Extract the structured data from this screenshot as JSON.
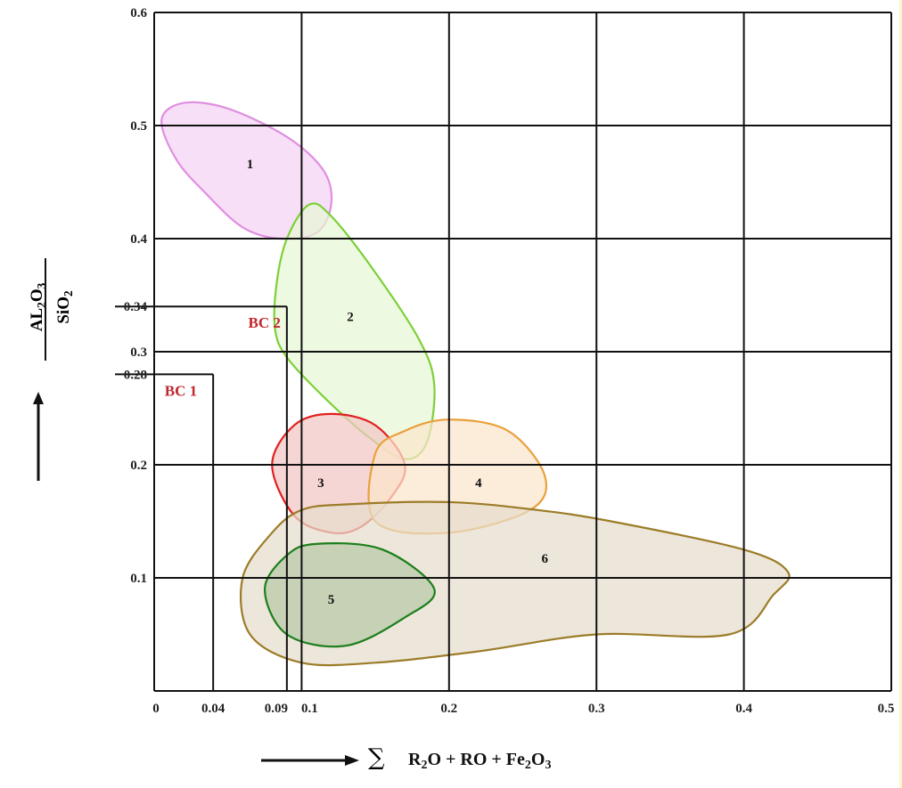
{
  "chart_data": {
    "type": "scatter",
    "title": "",
    "xlabel": "∑ R2O + RO + Fe2O3",
    "ylabel": "AL2O3 / SiO2",
    "xlim": [
      0,
      0.5
    ],
    "ylim": [
      0,
      0.6
    ],
    "grid": true,
    "x_ticks": [
      "0",
      "0.04",
      "0.09",
      "0.1",
      "0.2",
      "0.3",
      "0.4",
      "0.5"
    ],
    "x_tick_values": [
      0,
      0.04,
      0.09,
      0.1,
      0.2,
      0.3,
      0.4,
      0.5
    ],
    "y_ticks": [
      "0.1",
      "0.2",
      "0.28",
      "0.3",
      "0.34",
      "0.4",
      "0.5",
      "0.6"
    ],
    "y_tick_values": [
      0.1,
      0.2,
      0.28,
      0.3,
      0.34,
      0.4,
      0.5,
      0.6
    ],
    "grid_x": [
      0.1,
      0.2,
      0.3,
      0.4,
      0.5
    ],
    "grid_y": [
      0.1,
      0.2,
      0.3,
      0.4,
      0.5,
      0.6
    ],
    "zones": [
      {
        "label": "1",
        "stroke": "#e08ee0",
        "fill": "#f4d3f4",
        "outline": [
          [
            0.005,
            0.505
          ],
          [
            0.02,
            0.52
          ],
          [
            0.05,
            0.515
          ],
          [
            0.09,
            0.49
          ],
          [
            0.115,
            0.46
          ],
          [
            0.12,
            0.43
          ],
          [
            0.11,
            0.405
          ],
          [
            0.085,
            0.4
          ],
          [
            0.06,
            0.41
          ],
          [
            0.035,
            0.44
          ],
          [
            0.015,
            0.47
          ]
        ],
        "label_pos": [
          0.065,
          0.465
        ]
      },
      {
        "label": "2",
        "stroke": "#7cd038",
        "fill": "#e8f7d6",
        "outline": [
          [
            0.105,
            0.43
          ],
          [
            0.12,
            0.42
          ],
          [
            0.15,
            0.37
          ],
          [
            0.18,
            0.31
          ],
          [
            0.19,
            0.27
          ],
          [
            0.185,
            0.22
          ],
          [
            0.17,
            0.205
          ],
          [
            0.145,
            0.225
          ],
          [
            0.115,
            0.26
          ],
          [
            0.09,
            0.295
          ],
          [
            0.082,
            0.32
          ],
          [
            0.083,
            0.36
          ],
          [
            0.09,
            0.4
          ]
        ],
        "label_pos": [
          0.133,
          0.33
        ]
      },
      {
        "label": "3",
        "stroke": "#e02020",
        "fill": "#f2c6c4",
        "outline": [
          [
            0.12,
            0.245
          ],
          [
            0.15,
            0.235
          ],
          [
            0.17,
            0.2
          ],
          [
            0.16,
            0.17
          ],
          [
            0.14,
            0.145
          ],
          [
            0.12,
            0.14
          ],
          [
            0.095,
            0.155
          ],
          [
            0.08,
            0.2
          ],
          [
            0.095,
            0.235
          ]
        ],
        "label_pos": [
          0.113,
          0.183
        ]
      },
      {
        "label": "4",
        "stroke": "#e9a13b",
        "fill": "#fbe4cc",
        "outline": [
          [
            0.2,
            0.24
          ],
          [
            0.24,
            0.23
          ],
          [
            0.265,
            0.19
          ],
          [
            0.255,
            0.16
          ],
          [
            0.2,
            0.14
          ],
          [
            0.15,
            0.15
          ],
          [
            0.15,
            0.21
          ],
          [
            0.17,
            0.23
          ]
        ],
        "label_pos": [
          0.22,
          0.183
        ]
      },
      {
        "label": "6",
        "stroke": "#9c7c28",
        "fill": "#e6dccc",
        "outline": [
          [
            0.13,
            0.165
          ],
          [
            0.2,
            0.167
          ],
          [
            0.26,
            0.16
          ],
          [
            0.31,
            0.15
          ],
          [
            0.4,
            0.125
          ],
          [
            0.43,
            0.105
          ],
          [
            0.42,
            0.085
          ],
          [
            0.39,
            0.05
          ],
          [
            0.3,
            0.05
          ],
          [
            0.22,
            0.035
          ],
          [
            0.15,
            0.025
          ],
          [
            0.1,
            0.025
          ],
          [
            0.065,
            0.05
          ],
          [
            0.06,
            0.1
          ],
          [
            0.08,
            0.14
          ],
          [
            0.1,
            0.16
          ]
        ],
        "label_pos": [
          0.265,
          0.116
        ]
      },
      {
        "label": "5",
        "stroke": "#1b7f1b",
        "fill": "#b7c9a7",
        "outline": [
          [
            0.11,
            0.13
          ],
          [
            0.155,
            0.125
          ],
          [
            0.19,
            0.09
          ],
          [
            0.17,
            0.065
          ],
          [
            0.13,
            0.04
          ],
          [
            0.09,
            0.05
          ],
          [
            0.075,
            0.09
          ],
          [
            0.09,
            0.12
          ]
        ],
        "label_pos": [
          0.12,
          0.08
        ]
      }
    ],
    "samples": [
      {
        "label": "BC 1",
        "x": 0.04,
        "y": 0.28
      },
      {
        "label": "BC 2",
        "x": 0.09,
        "y": 0.34
      }
    ]
  },
  "colors": {
    "grid": "#111111",
    "sample": "#c0272d",
    "highlight": "#fff8c8"
  },
  "axis_text": {
    "y_num": "AL",
    "y_num_sub1": "2",
    "y_num_mid": "O",
    "y_num_sub2": "3",
    "y_den": "SiO",
    "y_den_sub": "2",
    "x_sigma": "∑",
    "x_p1": "R",
    "x_s1": "2",
    "x_p2": "O + RO + Fe",
    "x_s2": "2",
    "x_p3": "O",
    "x_s3": "3"
  }
}
